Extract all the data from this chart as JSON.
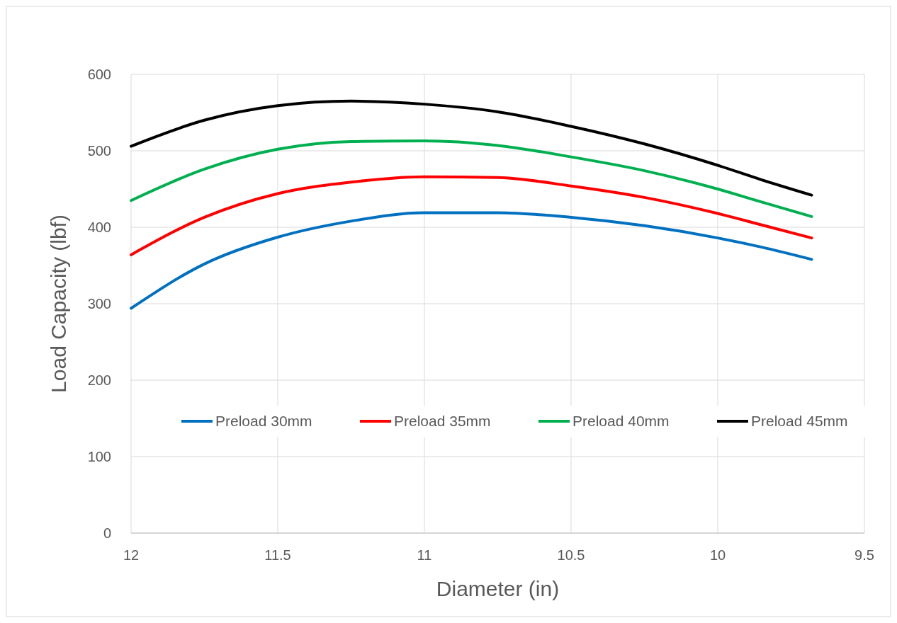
{
  "chart_data": {
    "type": "line",
    "xlabel": "Diameter  (in)",
    "ylabel": "Load Capacity (lbf)",
    "x": [
      12,
      11.75,
      11.5,
      11.25,
      11,
      10.75,
      10.5,
      10.25,
      10,
      9.85,
      9.68
    ],
    "series": [
      {
        "name": "Preload 30mm",
        "color": "#0070c0",
        "values": [
          294,
          352,
          387,
          408,
          419,
          419,
          413,
          402,
          386,
          374,
          358
        ]
      },
      {
        "name": "Preload 35mm",
        "color": "#ff0000",
        "values": [
          364,
          413,
          444,
          459,
          466,
          465,
          454,
          439,
          418,
          403,
          386
        ]
      },
      {
        "name": "Preload 40mm",
        "color": "#00b050",
        "values": [
          435,
          476,
          502,
          512,
          513,
          507,
          492,
          474,
          450,
          433,
          414
        ]
      },
      {
        "name": "Preload 45mm",
        "color": "#000000",
        "values": [
          506,
          540,
          559,
          565,
          561,
          551,
          532,
          509,
          481,
          462,
          442
        ]
      }
    ],
    "xlim": [
      12,
      9.5
    ],
    "xticks": [
      12,
      11.5,
      11,
      10.5,
      10,
      9.5
    ],
    "ylim": [
      0,
      600
    ],
    "yticks": [
      0,
      100,
      200,
      300,
      400,
      500,
      600
    ],
    "grid": true,
    "legend": "bottom",
    "marker": "none",
    "line_style": "solid"
  }
}
